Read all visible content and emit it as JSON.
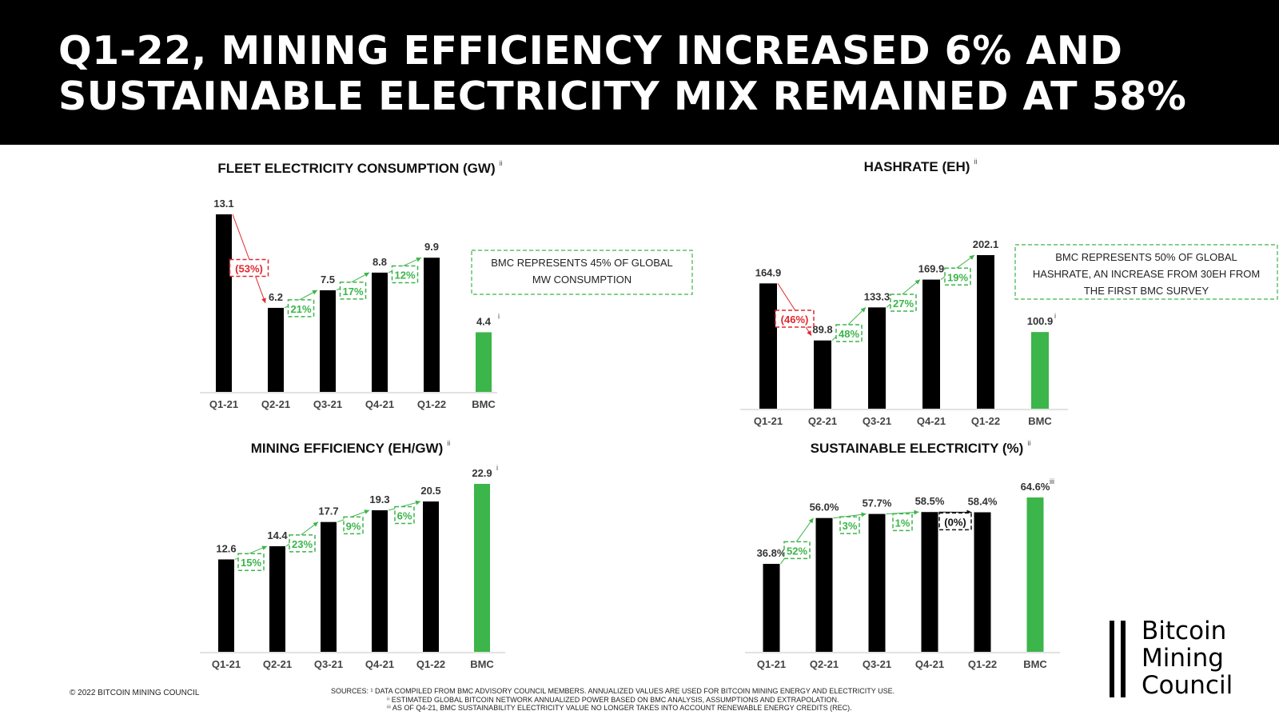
{
  "header": {
    "title_line1": "Q1-22, MINING EFFICIENCY INCREASED 6% AND",
    "title_line2": "SUSTAINABLE ELECTRICITY MIX REMAINED AT 58%"
  },
  "colors": {
    "bar": "#000000",
    "bmc_bar": "#3cb54a",
    "increase": "#3cb54a",
    "decrease": "#e0282e",
    "neutral": "#111111",
    "callout_border": "#3cb54a"
  },
  "chart_data": [
    {
      "type": "bar",
      "id": "fleet",
      "title": "FLEET ELECTRICITY CONSUMPTION (GW)",
      "title_sup": "ii",
      "categories": [
        "Q1-21",
        "Q2-21",
        "Q3-21",
        "Q4-21",
        "Q1-22",
        "BMC"
      ],
      "values": [
        13.1,
        6.2,
        7.5,
        8.8,
        9.9,
        4.4
      ],
      "labels": [
        "13.1",
        "6.2",
        "7.5",
        "8.8",
        "9.9",
        "4.4"
      ],
      "label_sups": [
        "",
        "",
        "",
        "",
        "",
        "i"
      ],
      "changes": [
        {
          "text": "(53%)",
          "dir": "down"
        },
        {
          "text": "21%",
          "dir": "up"
        },
        {
          "text": "17%",
          "dir": "up"
        },
        {
          "text": "12%",
          "dir": "up"
        }
      ],
      "callout": [
        "BMC REPRESENTS 45% OF GLOBAL",
        "MW CONSUMPTION"
      ],
      "ylim": [
        0,
        13.1
      ]
    },
    {
      "type": "bar",
      "id": "hashrate",
      "title": "HASHRATE (EH)",
      "title_sup": "ii",
      "categories": [
        "Q1-21",
        "Q2-21",
        "Q3-21",
        "Q4-21",
        "Q1-22",
        "BMC"
      ],
      "values": [
        164.9,
        89.8,
        133.3,
        169.9,
        202.1,
        100.9
      ],
      "labels": [
        "164.9",
        "89.8",
        "133.3",
        "169.9",
        "202.1",
        "100.9"
      ],
      "label_sups": [
        "",
        "",
        "",
        "",
        "",
        "i"
      ],
      "changes": [
        {
          "text": "(46%)",
          "dir": "down"
        },
        {
          "text": "48%",
          "dir": "up"
        },
        {
          "text": "27%",
          "dir": "up"
        },
        {
          "text": "19%",
          "dir": "up"
        }
      ],
      "callout": [
        "BMC REPRESENTS 50% OF GLOBAL",
        "HASHRATE, AN INCREASE FROM 30EH FROM",
        "THE FIRST BMC SURVEY"
      ],
      "ylim": [
        0,
        202.1
      ]
    },
    {
      "type": "bar",
      "id": "efficiency",
      "title": "MINING EFFICIENCY (EH/GW)",
      "title_sup": "ii",
      "categories": [
        "Q1-21",
        "Q2-21",
        "Q3-21",
        "Q4-21",
        "Q1-22",
        "BMC"
      ],
      "values": [
        12.6,
        14.4,
        17.7,
        19.3,
        20.5,
        22.9
      ],
      "labels": [
        "12.6",
        "14.4",
        "17.7",
        "19.3",
        "20.5",
        "22.9"
      ],
      "label_sups": [
        "",
        "",
        "",
        "",
        "",
        "i"
      ],
      "changes": [
        {
          "text": "15%",
          "dir": "up"
        },
        {
          "text": "23%",
          "dir": "up"
        },
        {
          "text": "9%",
          "dir": "up"
        },
        {
          "text": "6%",
          "dir": "up"
        }
      ],
      "callout": [],
      "ylim": [
        0,
        22.9
      ]
    },
    {
      "type": "bar",
      "id": "sustainable",
      "title": "SUSTAINABLE ELECTRICITY (%)",
      "title_sup": "ii",
      "categories": [
        "Q1-21",
        "Q2-21",
        "Q3-21",
        "Q4-21",
        "Q1-22",
        "BMC"
      ],
      "values": [
        36.8,
        56.0,
        57.7,
        58.5,
        58.4,
        64.6
      ],
      "labels": [
        "36.8%",
        "56.0%",
        "57.7%",
        "58.5%",
        "58.4%",
        "64.6%"
      ],
      "label_sups": [
        "",
        "",
        "",
        "",
        "",
        "iii"
      ],
      "changes": [
        {
          "text": "52%",
          "dir": "up"
        },
        {
          "text": "3%",
          "dir": "up"
        },
        {
          "text": "1%",
          "dir": "up"
        },
        {
          "text": "(0%)",
          "dir": "flat"
        }
      ],
      "callout": [],
      "ylim": [
        0,
        64.6
      ]
    }
  ],
  "footer": {
    "copyright": "© 2022 BITCOIN MINING COUNCIL",
    "source1": "SOURCES: ¹ DATA COMPILED FROM BMC ADVISORY COUNCIL MEMBERS. ANNUALIZED VALUES ARE USED FOR BITCOIN MINING ENERGY AND ELECTRICITY USE.",
    "source2": "ⁱⁱ ESTIMATED GLOBAL BITCOIN NETWORK ANNUALIZED POWER BASED ON BMC ANALYSIS, ASSUMPTIONS AND EXTRAPOLATION.",
    "source3": "ⁱⁱⁱ AS OF Q4-21, BMC SUSTAINABILITY ELECTRICITY VALUE NO LONGER TAKES INTO ACCOUNT RENEWABLE ENERGY CREDITS (REC)."
  },
  "logo": {
    "line1": "Bitcoin",
    "line2": "Mining",
    "line3": "Council"
  }
}
